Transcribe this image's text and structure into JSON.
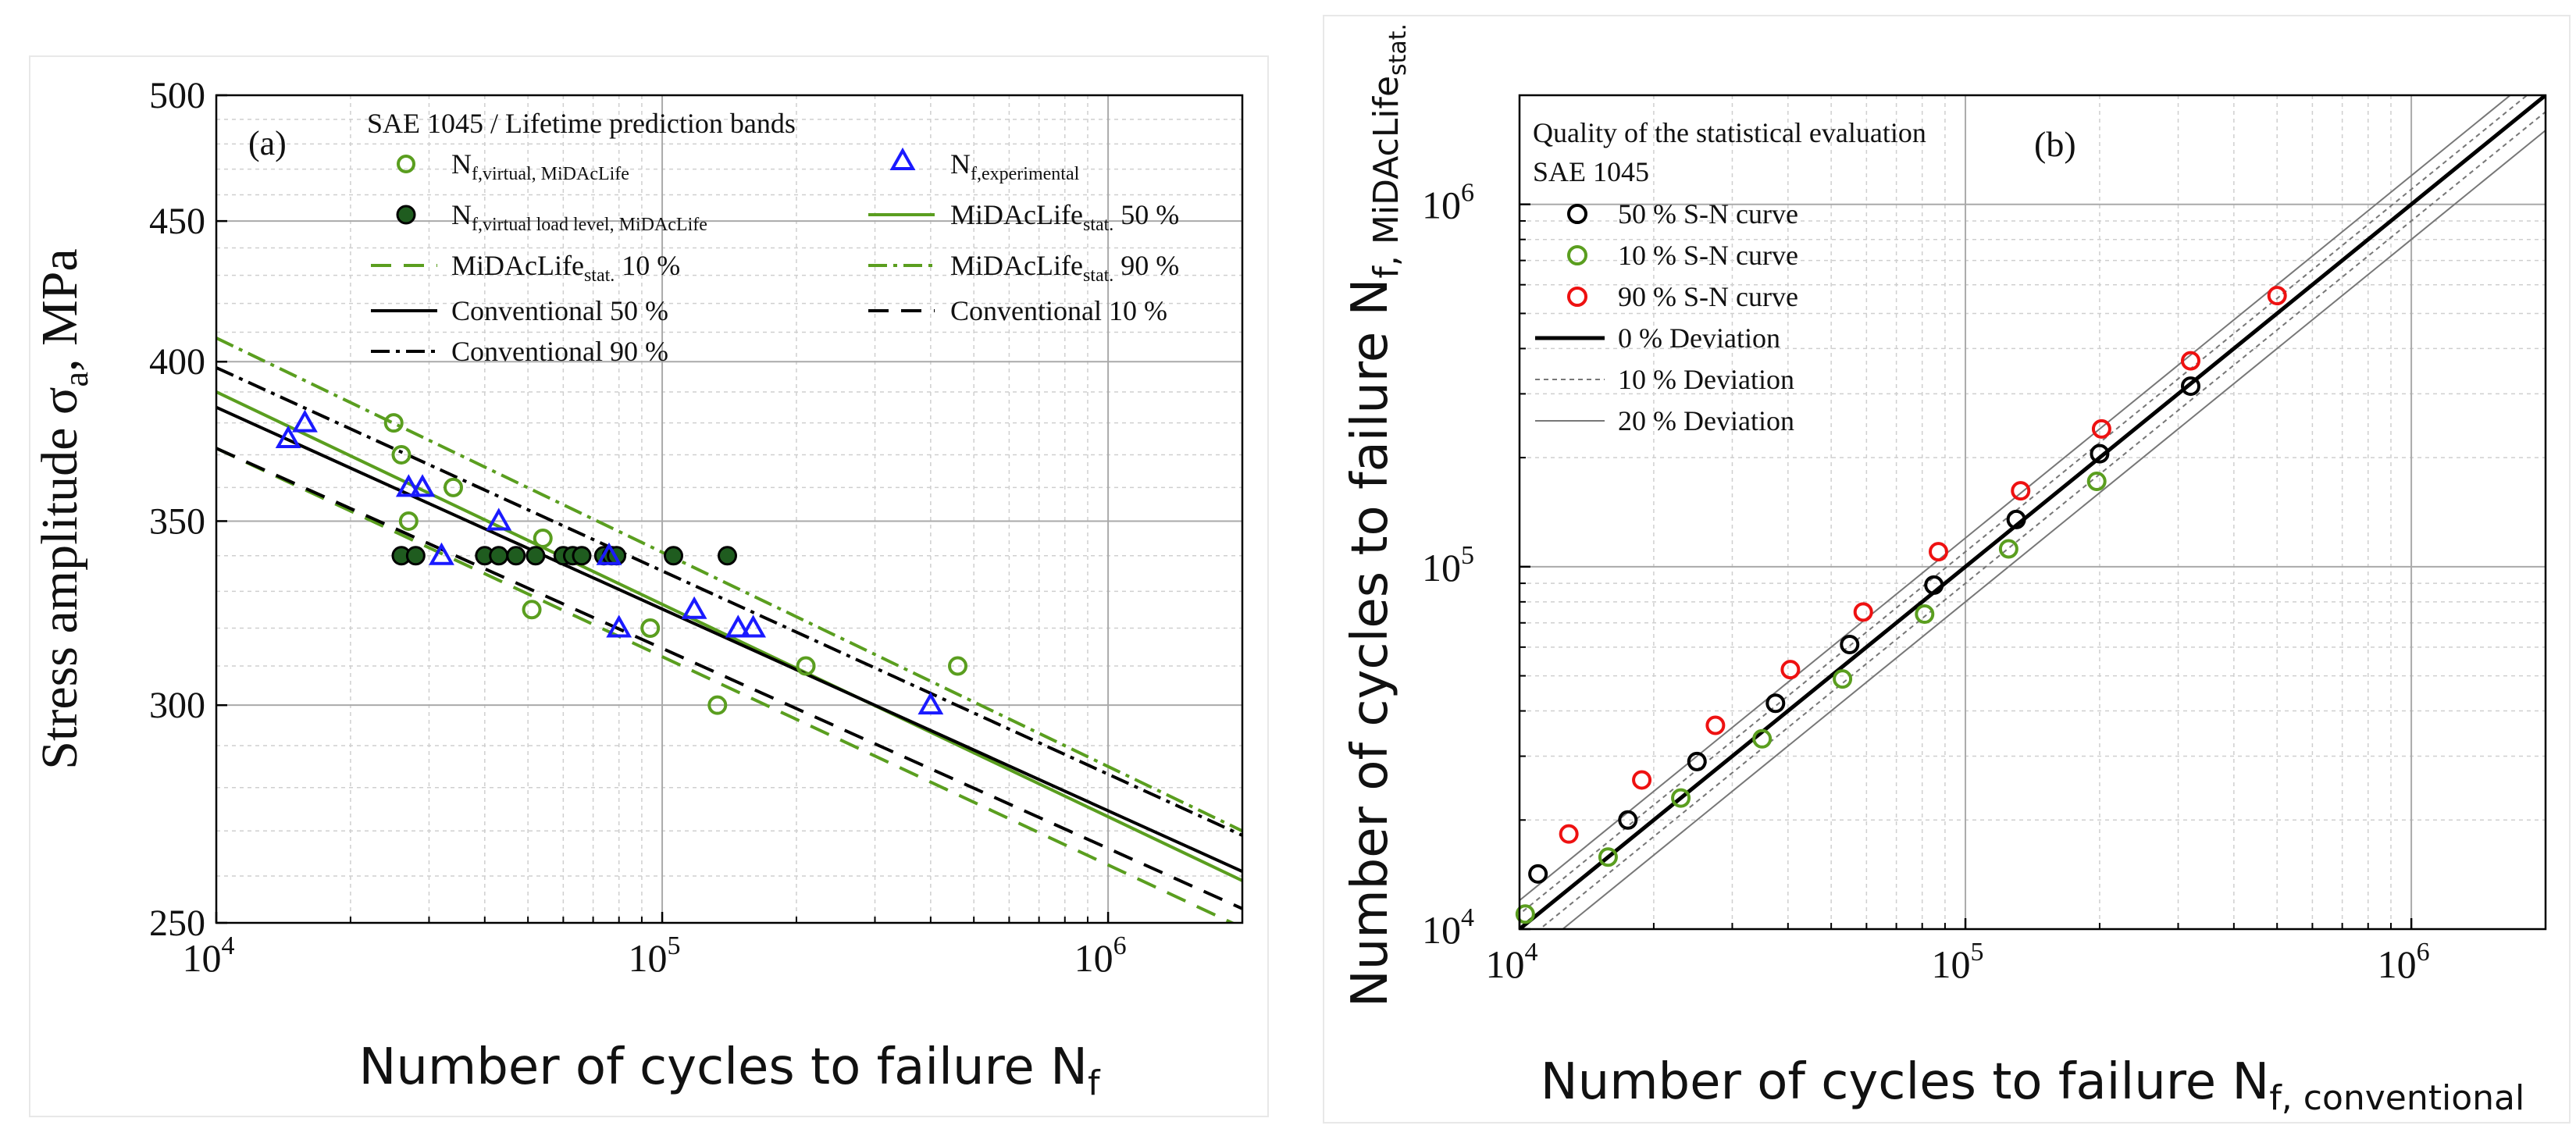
{
  "chart_data": [
    {
      "id": "a",
      "type": "scatter",
      "panel_label": "(a)",
      "xscale": "log",
      "yscale": "log",
      "xlim": [
        10000,
        2000000
      ],
      "ylim": [
        250,
        500
      ],
      "xlabel": "Number of cycles to failure N",
      "xlabel_sub": "f",
      "ylabel": "Stress amplitude σ",
      "ylabel_sub": "a",
      "ylabel_tail": ", MPa",
      "xticks": [
        {
          "value": 10000,
          "base": "10",
          "exp": "4"
        },
        {
          "value": 100000,
          "base": "10",
          "exp": "5"
        },
        {
          "value": 1000000,
          "base": "10",
          "exp": "6"
        }
      ],
      "yticks": [
        250,
        300,
        350,
        400,
        450,
        500
      ],
      "legend_title": "SAE 1045 / Lifetime prediction bands",
      "legend_position": "top-right",
      "colors": {
        "green": "#5a9e1f",
        "blue": "#1a1aff",
        "black": "#000000",
        "darkgreen": "#1f5c1f"
      },
      "series": [
        {
          "name": "N",
          "sub": "f,virtual, MiDAcLife",
          "marker": "open-circle",
          "color": "#5a9e1f",
          "points": [
            [
              25000,
              380
            ],
            [
              26000,
              370
            ],
            [
              27000,
              350
            ],
            [
              34000,
              360
            ],
            [
              51000,
              325
            ],
            [
              54000,
              345
            ],
            [
              94000,
              320
            ],
            [
              133000,
              300
            ],
            [
              210000,
              310
            ],
            [
              460000,
              310
            ]
          ]
        },
        {
          "name": "N",
          "sub": "f,virtual load level, MiDAcLife",
          "marker": "filled-circle",
          "color": "#1f5c1f",
          "edge": "#000000",
          "points": [
            [
              26000,
              340
            ],
            [
              28000,
              340
            ],
            [
              40000,
              340
            ],
            [
              43000,
              340
            ],
            [
              47000,
              340
            ],
            [
              52000,
              340
            ],
            [
              60000,
              340
            ],
            [
              63000,
              340
            ],
            [
              66000,
              340
            ],
            [
              74000,
              340
            ],
            [
              77000,
              340
            ],
            [
              79000,
              340
            ],
            [
              106000,
              340
            ],
            [
              140000,
              340
            ]
          ]
        },
        {
          "name": "N",
          "sub": "f,experimental",
          "marker": "open-triangle",
          "color": "#1a1aff",
          "points": [
            [
              14500,
              375
            ],
            [
              15800,
              380
            ],
            [
              27000,
              360
            ],
            [
              29000,
              360
            ],
            [
              32000,
              340
            ],
            [
              43000,
              350
            ],
            [
              76000,
              340
            ],
            [
              80000,
              320
            ],
            [
              118000,
              325
            ],
            [
              148000,
              320
            ],
            [
              160000,
              320
            ],
            [
              400000,
              300
            ]
          ]
        }
      ],
      "lines": [
        {
          "name": "MiDAcLife",
          "sub": "stat.",
          "tail": " 50 %",
          "style": "solid",
          "color": "#5a9e1f",
          "points": [
            [
              10000,
              390
            ],
            [
              2000000,
              259
            ]
          ]
        },
        {
          "name": "MiDAcLife",
          "sub": "stat.",
          "tail": " 10 %",
          "style": "dash",
          "color": "#5a9e1f",
          "points": [
            [
              10000,
              372
            ],
            [
              2000000,
              249
            ]
          ]
        },
        {
          "name": "MiDAcLife",
          "sub": "stat.",
          "tail": " 90 %",
          "style": "dashdot",
          "color": "#5a9e1f",
          "points": [
            [
              10000,
              408
            ],
            [
              2000000,
              270
            ]
          ]
        },
        {
          "name": "Conventional 50 %",
          "style": "solid",
          "color": "#000000",
          "points": [
            [
              10000,
              385
            ],
            [
              2000000,
              261
            ]
          ]
        },
        {
          "name": "Conventional 90 %",
          "style": "dashdot",
          "color": "#000000",
          "points": [
            [
              10000,
              398
            ],
            [
              2000000,
              269
            ]
          ]
        },
        {
          "name": "Conventional 10 %",
          "style": "dash",
          "color": "#000000",
          "points": [
            [
              10000,
              372
            ],
            [
              2000000,
              253
            ]
          ]
        }
      ]
    },
    {
      "id": "b",
      "type": "scatter",
      "panel_label": "(b)",
      "xscale": "log",
      "yscale": "log",
      "xlim": [
        10000,
        2000000
      ],
      "ylim": [
        10000,
        2000000
      ],
      "xlabel": "Number of cycles to failure N",
      "xlabel_sub": "f, conventional",
      "ylabel": "Number of cycles to failure N",
      "ylabel_sub": "f, MiDAcLife",
      "ylabel_subsub": "stat.",
      "xticks": [
        {
          "value": 10000,
          "base": "10",
          "exp": "4"
        },
        {
          "value": 100000,
          "base": "10",
          "exp": "5"
        },
        {
          "value": 1000000,
          "base": "10",
          "exp": "6"
        }
      ],
      "yticks": [
        {
          "value": 10000,
          "base": "10",
          "exp": "4"
        },
        {
          "value": 100000,
          "base": "10",
          "exp": "5"
        },
        {
          "value": 1000000,
          "base": "10",
          "exp": "6"
        }
      ],
      "legend_title": "Quality of the statistical evaluation",
      "legend_subtitle": "SAE 1045",
      "legend_position": "top-left",
      "series": [
        {
          "name": "50 % S-N curve",
          "marker": "open-circle",
          "color": "#000000",
          "points": [
            [
              11000,
              14200
            ],
            [
              17500,
              20000
            ],
            [
              25000,
              29000
            ],
            [
              37500,
              42000
            ],
            [
              55000,
              61000
            ],
            [
              85000,
              89000
            ],
            [
              130000,
              135000
            ],
            [
              200000,
              205000
            ],
            [
              320000,
              315000
            ]
          ]
        },
        {
          "name": "10 % S-N curve",
          "marker": "open-circle",
          "color": "#5a9e1f",
          "points": [
            [
              10300,
              11000
            ],
            [
              15800,
              15800
            ],
            [
              23000,
              23000
            ],
            [
              35000,
              33500
            ],
            [
              53000,
              49000
            ],
            [
              81000,
              74000
            ],
            [
              125000,
              112000
            ],
            [
              197000,
              172000
            ]
          ]
        },
        {
          "name": "90 % S-N curve",
          "marker": "open-circle",
          "color": "#ee1111",
          "points": [
            [
              12900,
              18300
            ],
            [
              18800,
              25800
            ],
            [
              27500,
              36500
            ],
            [
              40500,
              52000
            ],
            [
              59000,
              75000
            ],
            [
              87000,
              110000
            ],
            [
              133000,
              162000
            ],
            [
              202000,
              240000
            ],
            [
              320000,
              370000
            ],
            [
              500000,
              560000
            ]
          ]
        }
      ],
      "lines": [
        {
          "name": "0 % Deviation",
          "style": "solid-thick",
          "color": "#000000",
          "factor": 1.0
        },
        {
          "name": "10 % Deviation",
          "style": "dotted",
          "color": "#777777",
          "factors": [
            1.1,
            0.9
          ]
        },
        {
          "name": "20 % Deviation",
          "style": "solid-thin",
          "color": "#777777",
          "factors": [
            1.2,
            0.8
          ]
        }
      ]
    }
  ]
}
